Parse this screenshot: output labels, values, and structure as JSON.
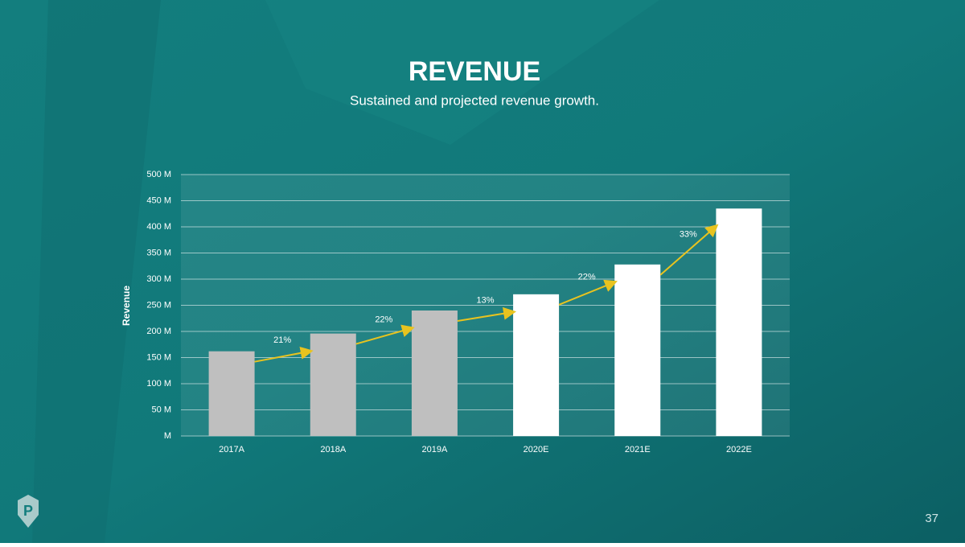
{
  "chart_data": {
    "type": "bar",
    "title": "REVENUE",
    "subtitle": "Sustained and projected revenue growth.",
    "y_label": "Revenue",
    "categories": [
      "2017A",
      "2018A",
      "2019A",
      "2020E",
      "2021E",
      "2022E"
    ],
    "values": [
      162,
      196,
      240,
      271,
      328,
      435
    ],
    "colors": [
      "#bfbfbf",
      "#bfbfbf",
      "#bfbfbf",
      "#ffffff",
      "#ffffff",
      "#ffffff"
    ],
    "growth_labels": [
      "21%",
      "22%",
      "13%",
      "22%",
      "33%"
    ],
    "arrow_color": "#e8c31f",
    "ylim": [
      0,
      500
    ],
    "yticks": [
      {
        "value": 0,
        "label": "M"
      },
      {
        "value": 50,
        "label": "50 M"
      },
      {
        "value": 100,
        "label": "100 M"
      },
      {
        "value": 150,
        "label": "150 M"
      },
      {
        "value": 200,
        "label": "200 M"
      },
      {
        "value": 250,
        "label": "250 M"
      },
      {
        "value": 300,
        "label": "300 M"
      },
      {
        "value": 350,
        "label": "350 M"
      },
      {
        "value": 400,
        "label": "400 M"
      },
      {
        "value": 450,
        "label": "450 M"
      },
      {
        "value": 500,
        "label": "500 M"
      }
    ],
    "grid": true
  },
  "page_number": "37"
}
